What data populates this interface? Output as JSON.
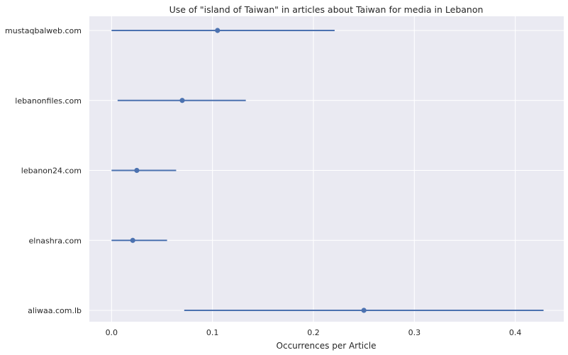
{
  "chart_data": {
    "type": "scatter",
    "title": "Use of \"island of Taiwan\" in articles about Taiwan for media in Lebanon",
    "xlabel": "Occurrences per Article",
    "ylabel": "",
    "xlim": [
      -0.022,
      0.448
    ],
    "xticks": [
      "0.0",
      "0.1",
      "0.2",
      "0.3",
      "0.4"
    ],
    "grid": true,
    "categories": [
      "mustaqbalweb.com",
      "lebanonfiles.com",
      "lebanon24.com",
      "elnashra.com",
      "aliwaa.com.lb"
    ],
    "series": [
      {
        "values": [
          0.105,
          0.07,
          0.025,
          0.021,
          0.25
        ],
        "lower": [
          0.0,
          0.006,
          0.0,
          0.0,
          0.072
        ],
        "upper": [
          0.221,
          0.133,
          0.064,
          0.055,
          0.428
        ]
      }
    ],
    "colors": {
      "background": "#eaeaf2",
      "grid": "#ffffff",
      "series": "#4c72b0"
    }
  }
}
